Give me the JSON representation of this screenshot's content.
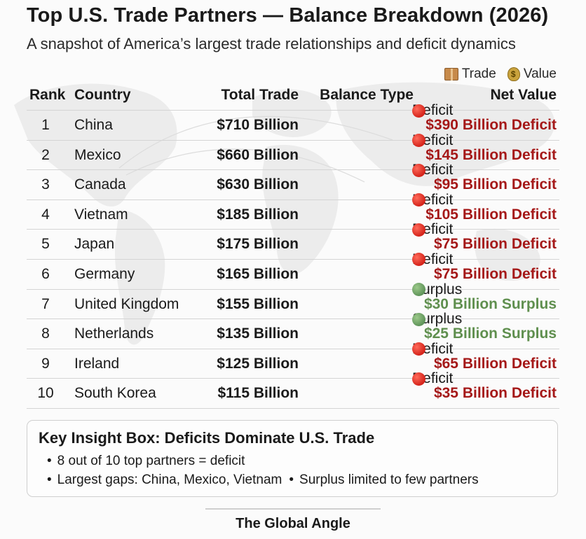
{
  "title": "Top U.S. Trade Partners — Balance Breakdown (2026)",
  "subtitle": "A snapshot of America’s largest trade relationships and deficit dynamics",
  "legend": {
    "trade_label": "Trade",
    "trade_icon": "package-box-icon",
    "value_label": "Value",
    "value_icon": "money-bag-icon"
  },
  "table": {
    "headers": {
      "rank": "Rank",
      "country": "Country",
      "total": "Total Trade",
      "type": "Balance Type",
      "net": "Net Value"
    },
    "rows": [
      {
        "rank": "1",
        "country": "China",
        "total": "$710 Billion",
        "type": "Deficit",
        "status": "deficit",
        "net": "$390 Billion Deficit"
      },
      {
        "rank": "2",
        "country": "Mexico",
        "total": "$660 Billion",
        "type": "Deficit",
        "status": "deficit",
        "net": "$145 Billion Deficit"
      },
      {
        "rank": "3",
        "country": "Canada",
        "total": "$630 Billion",
        "type": "Deficit",
        "status": "deficit",
        "net": "$95 Billion Deficit"
      },
      {
        "rank": "4",
        "country": "Vietnam",
        "total": "$185 Billion",
        "type": "Deficit",
        "status": "deficit",
        "net": "$105 Billion Deficit"
      },
      {
        "rank": "5",
        "country": "Japan",
        "total": "$175 Billion",
        "type": "Deficit",
        "status": "deficit",
        "net": "$75 Billion Deficit"
      },
      {
        "rank": "6",
        "country": "Germany",
        "total": "$165 Billion",
        "type": "Deficit",
        "status": "deficit",
        "net": "$75 Billion Deficit"
      },
      {
        "rank": "7",
        "country": "United Kingdom",
        "total": "$155 Billion",
        "type": "Surplus",
        "status": "surplus",
        "net": "$30 Billion Surplus"
      },
      {
        "rank": "8",
        "country": "Netherlands",
        "total": "$135 Billion",
        "type": "Surplus",
        "status": "surplus",
        "net": "$25 Billion Surplus"
      },
      {
        "rank": "9",
        "country": "Ireland",
        "total": "$125 Billion",
        "type": "Deficit",
        "status": "deficit",
        "net": "$65 Billion Deficit"
      },
      {
        "rank": "10",
        "country": "South Korea",
        "total": "$115 Billion",
        "type": "Deficit",
        "status": "deficit",
        "net": "$35 Billion Deficit"
      }
    ]
  },
  "colors": {
    "deficit": "#a51818",
    "surplus": "#5f8f4e"
  },
  "insight": {
    "title": "Key Insight Box: Deficits Dominate U.S. Trade",
    "point1": "8 out of 10 top partners = deficit",
    "point2": "Largest gaps: China, Mexico, Vietnam",
    "point3": "Surplus limited to few partners"
  },
  "footer": "The Global Angle"
}
